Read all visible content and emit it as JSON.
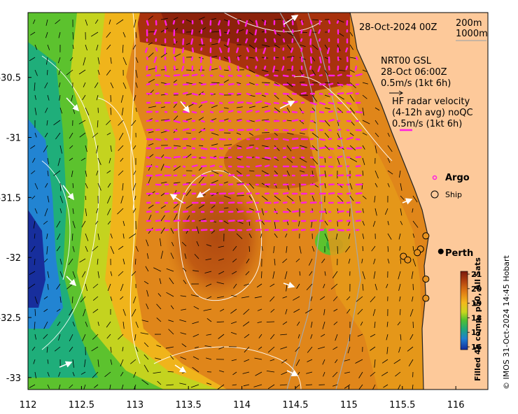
{
  "map": {
    "x_ticks": [
      "112",
      "112.5",
      "113",
      "113.5",
      "114",
      "114.5",
      "115",
      "115.5",
      "116"
    ],
    "y_ticks": [
      "-30.5",
      "-31",
      "-31.5",
      "-32",
      "-32.5",
      "-33"
    ],
    "x_range": [
      112,
      116.3
    ],
    "y_range": [
      -33.1,
      -29.96
    ]
  },
  "legend": {
    "date": "28-Oct-2024 00Z",
    "depth_200": "200m",
    "depth_1000": "1000m",
    "gsl_title": "NRT00 GSL",
    "gsl_time": "28-Oct 06:00Z",
    "gsl_scale": "0.5m/s (1kt 6h)",
    "hf_title": "HF radar velocity",
    "hf_avg": "(4-12h avg) noQC",
    "hf_scale": "0.5m/s (1kt 6h)",
    "argo_label": "Argo",
    "ship_label": "Ship"
  },
  "place": {
    "name": "Perth",
    "lon": 115.86,
    "lat": -31.95
  },
  "colorbar": {
    "ticks": [
      "21",
      "20",
      "19",
      "18",
      "17",
      "16"
    ],
    "label": "Filled 4h comp, p50, All Sats",
    "colors": [
      "#7a1a0c",
      "#b0400f",
      "#e07a14",
      "#f4b81c",
      "#c8d71e",
      "#52c12e",
      "#1fa87a",
      "#1f7fd1",
      "#142c9a"
    ]
  },
  "credit": "© IMOS 31-Oct-2024 14:45 Hobart",
  "ships": [
    {
      "lon": 115.72,
      "lat": -31.82
    },
    {
      "lon": 115.67,
      "lat": -31.93
    },
    {
      "lon": 115.64,
      "lat": -31.96
    },
    {
      "lon": 115.51,
      "lat": -31.99
    },
    {
      "lon": 115.55,
      "lat": -32.02
    },
    {
      "lon": 115.72,
      "lat": -32.18
    },
    {
      "lon": 115.72,
      "lat": -32.34
    }
  ]
}
